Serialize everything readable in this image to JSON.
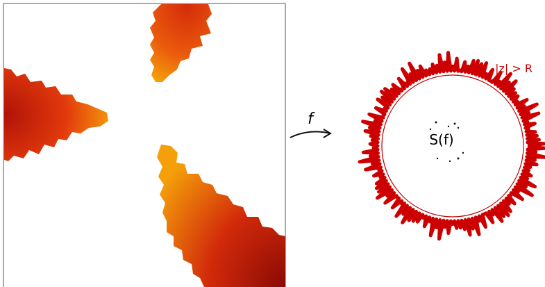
{
  "arrow_label": "f",
  "region_label": "|z| > R",
  "set_label": "S(f)"
}
